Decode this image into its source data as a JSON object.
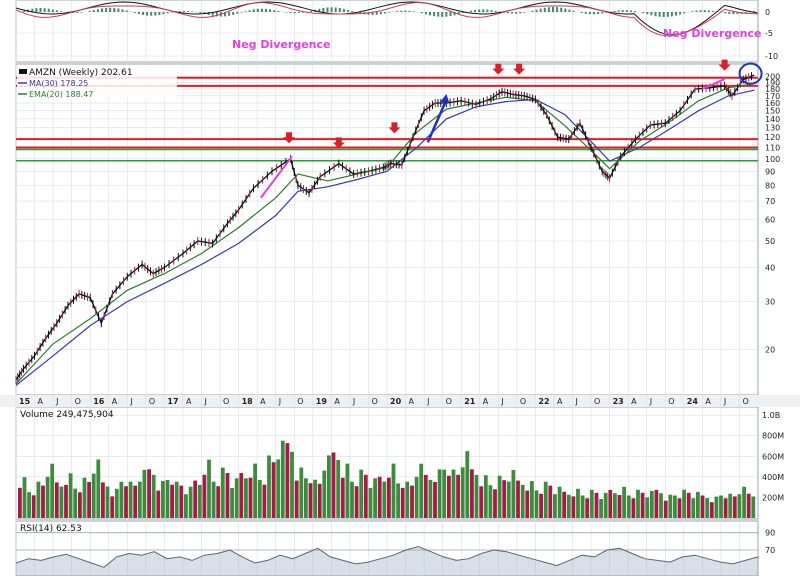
{
  "colors": {
    "price": "#111111",
    "ma30": "#3a3aa0",
    "ema20": "#2d7a2d",
    "resistance": "#d8202a",
    "support": "#22a03a",
    "divergence": "#e040e0",
    "arrow_down": "#d8202a",
    "arrow_up": "#2030c0",
    "circle": "#2030c0",
    "vol_up": "#3f8a3f",
    "vol_down": "#a01e46",
    "grid": "#d9dee3",
    "macd_hist": "#3f8a6a",
    "rsi_line": "#556677",
    "rsi_fill": "#8ea3b8"
  },
  "macd": {
    "right_axis": [
      "0",
      "-5",
      "-10"
    ],
    "annotations": [
      "Neg Divergence",
      "Neg Divergence"
    ]
  },
  "main": {
    "legend_title": "AMZN (Weekly) 202.61",
    "legend_ma": "MA(30) 178.25",
    "legend_ema": "EMA(20) 188.47",
    "right_axis": [
      "200",
      "190",
      "180",
      "170",
      "160",
      "150",
      "140",
      "130",
      "120",
      "110",
      "100",
      "90",
      "80",
      "70",
      "60",
      "50",
      "40",
      "30",
      "20"
    ],
    "x_labels": [
      "15",
      "A",
      "J",
      "O",
      "16",
      "A",
      "J",
      "O",
      "17",
      "A",
      "J",
      "O",
      "18",
      "A",
      "J",
      "O",
      "19",
      "A",
      "J",
      "O",
      "20",
      "A",
      "J",
      "O",
      "21",
      "A",
      "J",
      "O",
      "22",
      "A",
      "J",
      "O",
      "23",
      "A",
      "J",
      "O",
      "24",
      "A",
      "J",
      "O"
    ]
  },
  "volume": {
    "label": "Volume 249,475,904",
    "right_axis": [
      "1.0B",
      "800M",
      "600M",
      "400M",
      "200M"
    ]
  },
  "rsi": {
    "label": "RSI(14) 62.53",
    "right_axis": [
      "90",
      "70"
    ]
  },
  "chart_data": {
    "type": "line",
    "title": "AMZN (Weekly) 202.61",
    "yscale": "log",
    "ylim": [
      14,
      215
    ],
    "xlim": [
      2015.0,
      2025.0
    ],
    "series": [
      {
        "name": "AMZN (Weekly) 202.61",
        "role": "price",
        "x": [
          2015.0,
          2015.1,
          2015.25,
          2015.4,
          2015.55,
          2015.7,
          2015.85,
          2016.0,
          2016.15,
          2016.3,
          2016.5,
          2016.7,
          2016.85,
          2017.0,
          2017.25,
          2017.45,
          2017.65,
          2017.85,
          2018.0,
          2018.2,
          2018.45,
          2018.7,
          2018.8,
          2018.95,
          2019.1,
          2019.35,
          2019.55,
          2019.75,
          2019.95,
          2020.05,
          2020.2,
          2020.35,
          2020.5,
          2020.65,
          2020.8,
          2021.0,
          2021.2,
          2021.4,
          2021.55,
          2021.7,
          2021.85,
          2022.0,
          2022.15,
          2022.3,
          2022.45,
          2022.6,
          2022.75,
          2022.9,
          2023.0,
          2023.15,
          2023.35,
          2023.55,
          2023.75,
          2023.95,
          2024.15,
          2024.35,
          2024.55,
          2024.65,
          2024.8,
          2024.95
        ],
        "values": [
          15.5,
          17,
          19,
          22,
          25,
          29,
          32,
          31,
          25,
          32,
          37,
          41,
          38,
          40,
          45,
          50,
          49,
          58,
          65,
          78,
          90,
          100,
          80,
          75,
          86,
          96,
          88,
          90,
          93,
          96,
          95,
          120,
          150,
          160,
          160,
          163,
          158,
          166,
          176,
          172,
          170,
          165,
          145,
          120,
          118,
          135,
          110,
          90,
          85,
          102,
          118,
          133,
          135,
          150,
          180,
          182,
          185,
          170,
          195,
          202.61
        ]
      },
      {
        "name": "MA(30) 178.25",
        "role": "ma30",
        "x": [
          2015.0,
          2015.5,
          2016.0,
          2016.5,
          2017.0,
          2017.5,
          2018.0,
          2018.5,
          2018.8,
          2019.2,
          2019.6,
          2020.0,
          2020.4,
          2020.8,
          2021.2,
          2021.6,
          2022.0,
          2022.4,
          2022.8,
          2023.0,
          2023.4,
          2023.8,
          2024.2,
          2024.6,
          2024.95
        ],
        "values": [
          14.8,
          19,
          24.5,
          30,
          35,
          41,
          49,
          62,
          76,
          79,
          84,
          90,
          110,
          140,
          155,
          162,
          165,
          145,
          112,
          98,
          110,
          128,
          150,
          170,
          178.25
        ]
      },
      {
        "name": "EMA(20) 188.47",
        "role": "ema20",
        "x": [
          2015.0,
          2015.5,
          2016.0,
          2016.5,
          2017.0,
          2017.5,
          2018.0,
          2018.5,
          2018.8,
          2019.2,
          2019.6,
          2020.0,
          2020.4,
          2020.8,
          2021.2,
          2021.6,
          2022.0,
          2022.4,
          2022.8,
          2023.0,
          2023.4,
          2023.8,
          2024.2,
          2024.6,
          2024.95
        ],
        "values": [
          15,
          21,
          26,
          33,
          38,
          45,
          56,
          72,
          88,
          83,
          88,
          93,
          125,
          152,
          160,
          168,
          163,
          132,
          104,
          92,
          116,
          136,
          163,
          182,
          188.47
        ]
      }
    ],
    "resistance_levels": [
      185,
      198,
      110,
      118
    ],
    "support_levels": [
      100,
      110
    ],
    "down_arrows": [
      [
        2018.68,
        115
      ],
      [
        2019.35,
        110
      ],
      [
        2020.1,
        125
      ],
      [
        2021.5,
        205
      ],
      [
        2021.78,
        205
      ],
      [
        2024.55,
        212
      ]
    ],
    "up_arrow": {
      "from": [
        2020.55,
        115
      ],
      "to": [
        2020.8,
        170
      ]
    },
    "divergence_lines": [
      {
        "from": [
          2018.3,
          72
        ],
        "to": [
          2018.72,
          102
        ]
      },
      {
        "from": [
          2024.25,
          180
        ],
        "to": [
          2024.55,
          196
        ]
      }
    ],
    "circle": [
      2024.9,
      205
    ],
    "volume_values": [
      420,
      300,
      360,
      520,
      380,
      460,
      340,
      400,
      560,
      380,
      300,
      420,
      360,
      460,
      520,
      380,
      440,
      360,
      300,
      400,
      600,
      420,
      500,
      380,
      480,
      560,
      440,
      620,
      740,
      800,
      520,
      460,
      380,
      600,
      700,
      560,
      420,
      480,
      380,
      440,
      560,
      400,
      360,
      520,
      460,
      500,
      560,
      480,
      640,
      520,
      440,
      380,
      420,
      460,
      400,
      380,
      320,
      360,
      300,
      280,
      300,
      260,
      280,
      240,
      300,
      320,
      260,
      280,
      260,
      300,
      240,
      260,
      280,
      250,
      240,
      220,
      260,
      240,
      300,
      260
    ],
    "rsi_values": [
      55,
      60,
      58,
      62,
      65,
      60,
      55,
      50,
      62,
      66,
      64,
      68,
      60,
      62,
      58,
      64,
      66,
      70,
      62,
      55,
      58,
      64,
      60,
      66,
      72,
      62,
      58,
      54,
      56,
      60,
      64,
      70,
      74,
      68,
      62,
      58,
      60,
      66,
      70,
      68,
      64,
      60,
      56,
      52,
      58,
      64,
      62,
      70,
      72,
      66,
      60,
      58,
      56,
      62,
      64,
      60,
      56,
      54,
      58,
      62
    ]
  }
}
